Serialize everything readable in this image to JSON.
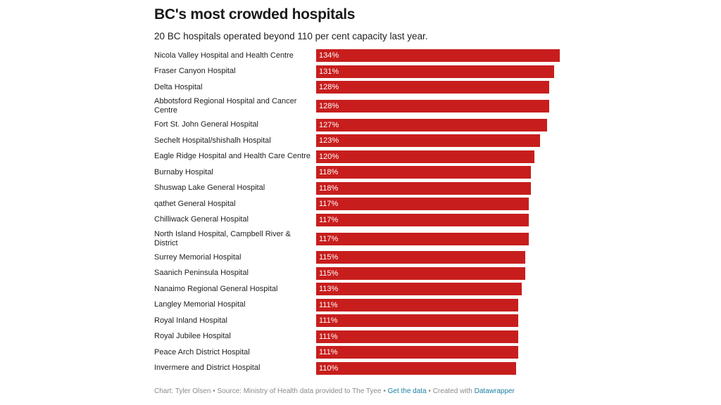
{
  "chart_data": {
    "type": "bar",
    "orientation": "horizontal",
    "title": "BC's most crowded hospitals",
    "subtitle": "20 BC hospitals operated beyond 110 per cent capacity last year.",
    "categories": [
      "Nicola Valley Hospital and Health Centre",
      "Fraser Canyon Hospital",
      "Delta Hospital",
      "Abbotsford Regional Hospital and Cancer Centre",
      "Fort St. John General Hospital",
      "Sechelt Hospital/shishalh Hospital",
      "Eagle Ridge Hospital and Health Care Centre",
      "Burnaby Hospital",
      "Shuswap Lake General Hospital",
      "qathet General Hospital",
      "Chilliwack General Hospital",
      "North Island Hospital, Campbell River & District",
      "Surrey Memorial Hospital",
      "Saanich Peninsula Hospital",
      "Nanaimo Regional General Hospital",
      "Langley Memorial Hospital",
      "Royal Inland Hospital",
      "Royal Jubilee Hospital",
      "Peace Arch District Hospital",
      "Invermere and District Hospital"
    ],
    "values": [
      134,
      131,
      128,
      128,
      127,
      123,
      120,
      118,
      118,
      117,
      117,
      117,
      115,
      115,
      113,
      111,
      111,
      111,
      111,
      110
    ],
    "value_labels": [
      "134%",
      "131%",
      "128%",
      "128%",
      "127%",
      "123%",
      "120%",
      "118%",
      "118%",
      "117%",
      "117%",
      "117%",
      "115%",
      "115%",
      "113%",
      "111%",
      "111%",
      "111%",
      "111%",
      "110%"
    ],
    "xlim": [
      0,
      134
    ],
    "bar_color": "#c71e1d"
  },
  "footer": {
    "credit": "Chart: Tyler Olsen • Source: Ministry of Health data provided to The Tyee • ",
    "get_data": "Get the data",
    "sep": " • Created with ",
    "datawrapper": "Datawrapper"
  }
}
